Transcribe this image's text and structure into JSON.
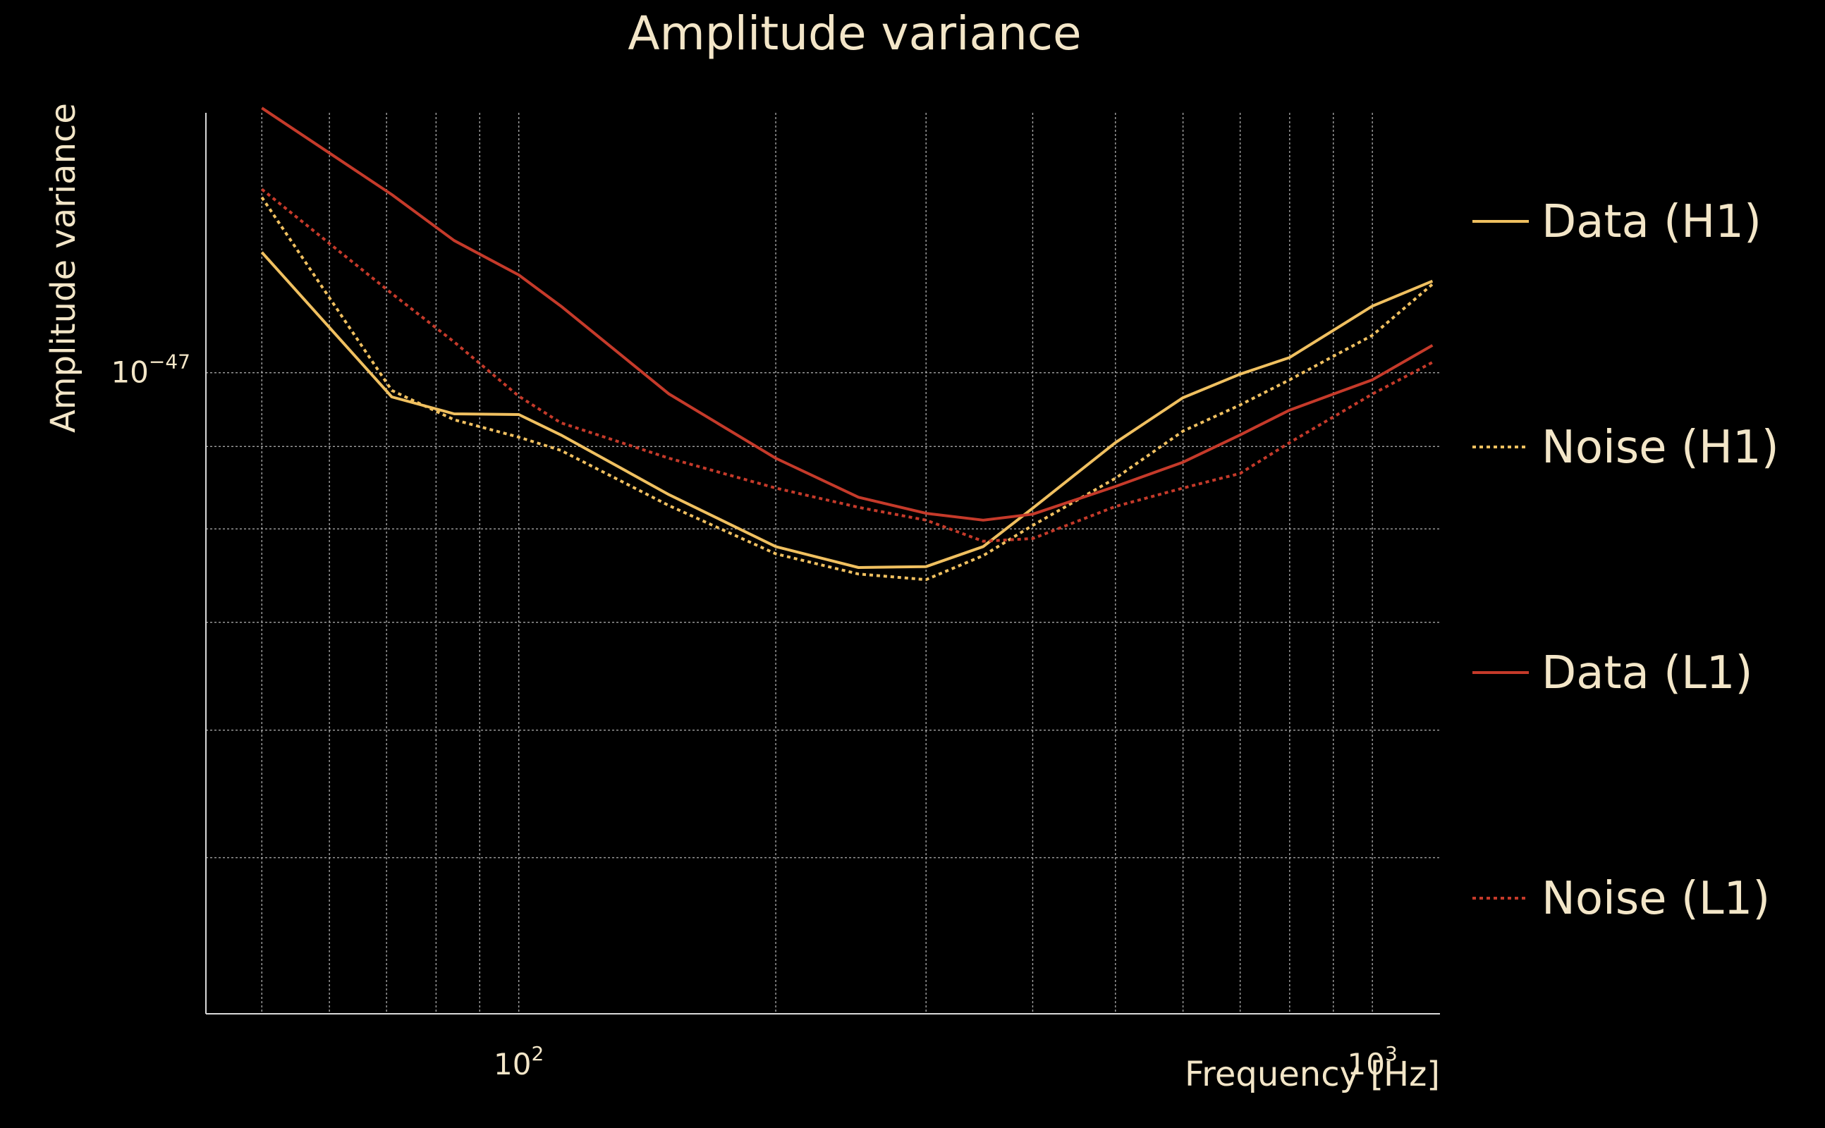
{
  "chart_data": {
    "type": "line",
    "title": "Amplitude variance",
    "xlabel": "Frequency [Hz]",
    "ylabel": "Amplitude variance",
    "xscale": "log",
    "yscale": "log",
    "xlim": [
      43,
      1200
    ],
    "ylim": [
      4e-48,
      1.45e-47
    ],
    "grid": true,
    "legend_position": "right",
    "x_ticks": [
      {
        "value": 100,
        "base": "10",
        "exp": "2"
      },
      {
        "value": 1000,
        "base": "10",
        "exp": "3"
      }
    ],
    "y_ticks": [
      {
        "value": 1e-47,
        "base": "10",
        "exp": "−47"
      }
    ],
    "x": [
      50,
      71,
      84,
      100,
      112,
      150,
      200,
      250,
      300,
      350,
      400,
      500,
      600,
      700,
      800,
      1000,
      1176
    ],
    "series": [
      {
        "name": "Data (H1)",
        "color": "#f0c060",
        "style": "solid",
        "values": [
          1.188e-47,
          9.66e-48,
          9.43e-48,
          9.42e-48,
          9.15e-48,
          8.4e-48,
          7.8e-48,
          7.57e-48,
          7.58e-48,
          7.8e-48,
          8.24e-48,
          9.05e-48,
          9.65e-48,
          9.98e-48,
          1.022e-47,
          1.1e-47,
          1.14e-47
        ]
      },
      {
        "name": "Noise (H1)",
        "color": "#f0c060",
        "style": "dotted",
        "values": [
          1.285e-47,
          9.75e-48,
          9.35e-48,
          9.12e-48,
          8.95e-48,
          8.27e-48,
          7.72e-48,
          7.5e-48,
          7.44e-48,
          7.7e-48,
          8.04e-48,
          8.6e-48,
          9.2e-48,
          9.55e-48,
          9.9e-48,
          1.055e-47,
          1.135e-47
        ]
      },
      {
        "name": "Data (L1)",
        "color": "#c53a2a",
        "style": "solid",
        "values": [
          1.46e-47,
          1.29e-47,
          1.208e-47,
          1.15e-47,
          1.1e-47,
          9.7e-48,
          8.85e-48,
          8.37e-48,
          8.18e-48,
          8.1e-48,
          8.17e-48,
          8.5e-48,
          8.8e-48,
          9.15e-48,
          9.48e-48,
          9.9e-48,
          1.04e-47
        ]
      },
      {
        "name": "Noise (L1)",
        "color": "#c53a2a",
        "style": "dotted",
        "values": [
          1.3e-47,
          1.12e-47,
          1.045e-47,
          9.67e-48,
          9.31e-48,
          8.85e-48,
          8.48e-48,
          8.25e-48,
          8.1e-48,
          7.86e-48,
          7.89e-48,
          8.26e-48,
          8.48e-48,
          8.66e-48,
          9.05e-48,
          9.7e-48,
          1.015e-47
        ]
      }
    ]
  }
}
